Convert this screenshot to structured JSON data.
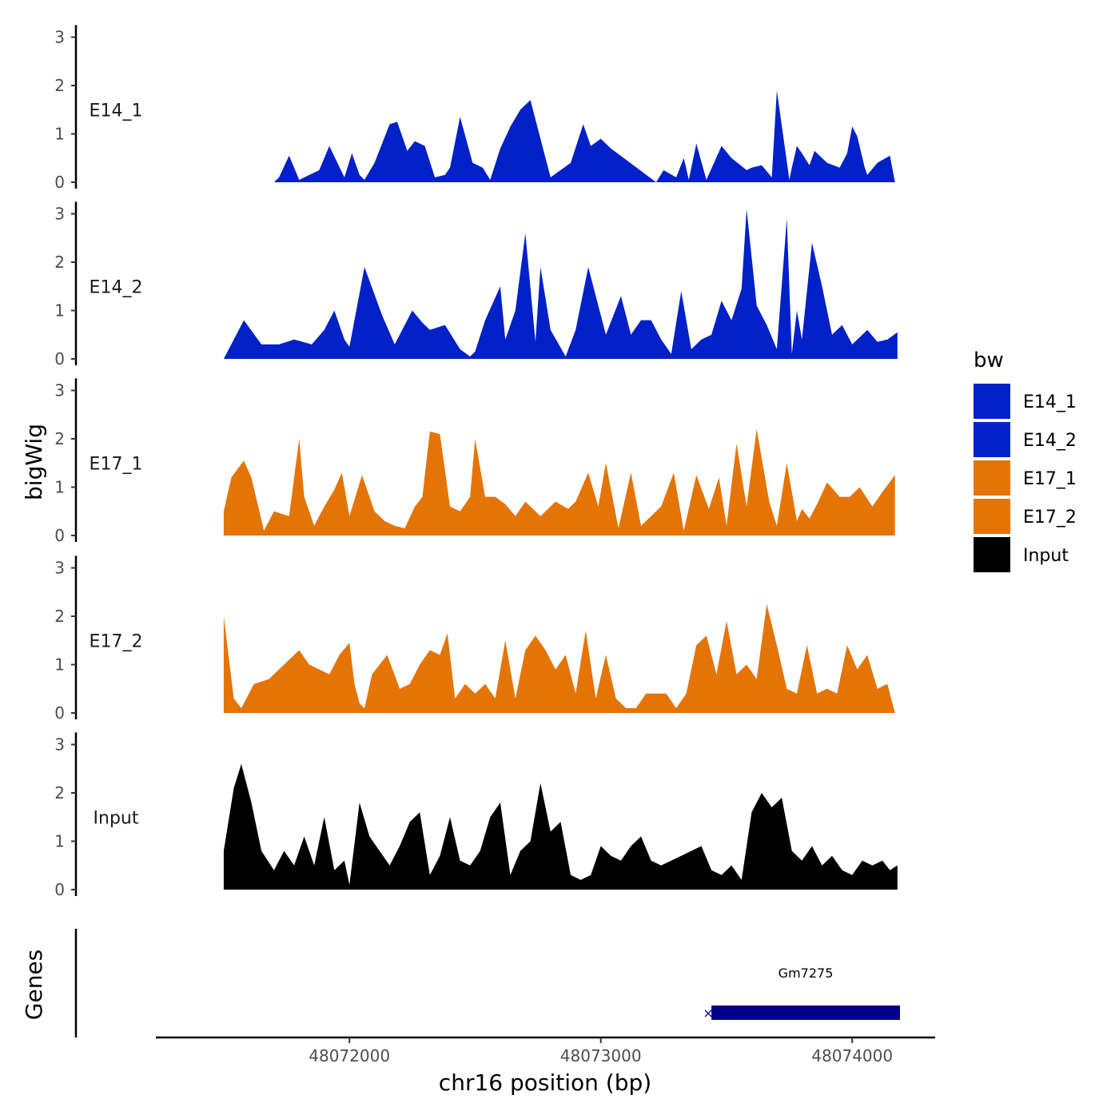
{
  "chart_data": {
    "type": "area",
    "title": "",
    "ylabel": "bigWig",
    "xlabel": "chr16 position (bp)",
    "genes_label": "Genes",
    "xlim": [
      48071230,
      48074330
    ],
    "ylim": [
      0,
      3.2
    ],
    "x_ticks": [
      48072000,
      48073000,
      48074000
    ],
    "x_tick_labels": [
      "48072000",
      "48073000",
      "48074000"
    ],
    "y_ticks": [
      0,
      1,
      2,
      3
    ],
    "y_tick_labels": [
      "0",
      "1",
      "2",
      "3"
    ],
    "legend": {
      "title": "bw",
      "placement": "right",
      "entries": [
        {
          "label": "E14_1",
          "color": "#0020C8"
        },
        {
          "label": "E14_2",
          "color": "#0020C8"
        },
        {
          "label": "E17_1",
          "color": "#E57406"
        },
        {
          "label": "E17_2",
          "color": "#E57406"
        },
        {
          "label": "Input",
          "color": "#000000"
        }
      ]
    },
    "series": [
      {
        "name": "E14_1",
        "color": "#0020C8",
        "x": [
          48071700,
          48071720,
          48071760,
          48071800,
          48071880,
          48071920,
          48071980,
          48072010,
          48072040,
          48072060,
          48072100,
          48072160,
          48072190,
          48072230,
          48072260,
          48072300,
          48072340,
          48072380,
          48072400,
          48072440,
          48072490,
          48072530,
          48072560,
          48072600,
          48072640,
          48072680,
          48072720,
          48072800,
          48072880,
          48072930,
          48072960,
          48073000,
          48073040,
          48073220,
          48073250,
          48073300,
          48073330,
          48073350,
          48073380,
          48073420,
          48073480,
          48073520,
          48073580,
          48073600,
          48073640,
          48073680,
          48073700,
          48073750,
          48073760,
          48073780,
          48073800,
          48073830,
          48073850,
          48073900,
          48073950,
          48073980,
          48074000,
          48074020,
          48074050,
          48074060,
          48074100,
          48074150,
          48074170
        ],
        "values": [
          0,
          0.1,
          0.55,
          0.05,
          0.25,
          0.75,
          0.1,
          0.6,
          0.15,
          0.05,
          0.4,
          1.2,
          1.25,
          0.65,
          0.85,
          0.75,
          0.1,
          0.15,
          0.3,
          1.35,
          0.4,
          0.3,
          0.05,
          0.7,
          1.15,
          1.5,
          1.7,
          0.1,
          0.4,
          1.2,
          0.75,
          0.9,
          0.7,
          0,
          0.25,
          0.1,
          0.5,
          0.05,
          0.8,
          0.05,
          0.75,
          0.5,
          0.25,
          0.3,
          0.35,
          0.1,
          1.9,
          0.05,
          0.3,
          0.75,
          0.6,
          0.35,
          0.65,
          0.4,
          0.3,
          0.6,
          1.15,
          0.95,
          0.3,
          0.15,
          0.4,
          0.55,
          0
        ]
      },
      {
        "name": "E14_2",
        "color": "#0020C8",
        "x": [
          48071500,
          48071580,
          48071650,
          48071720,
          48071780,
          48071850,
          48071900,
          48071940,
          48071980,
          48072000,
          48072060,
          48072130,
          48072180,
          48072250,
          48072290,
          48072320,
          48072380,
          48072440,
          48072480,
          48072500,
          48072540,
          48072600,
          48072620,
          48072660,
          48072700,
          48072740,
          48072760,
          48072800,
          48072860,
          48072900,
          48072950,
          48073020,
          48073080,
          48073120,
          48073160,
          48073200,
          48073240,
          48073280,
          48073320,
          48073360,
          48073400,
          48073440,
          48073480,
          48073520,
          48073560,
          48073580,
          48073620,
          48073660,
          48073700,
          48073740,
          48073760,
          48073780,
          48073800,
          48073840,
          48073880,
          48073920,
          48073960,
          48074000,
          48074060,
          48074100,
          48074140,
          48074180
        ],
        "values": [
          0,
          0.8,
          0.3,
          0.3,
          0.4,
          0.3,
          0.6,
          1.0,
          0.4,
          0.25,
          1.9,
          0.9,
          0.3,
          1.0,
          0.75,
          0.6,
          0.7,
          0.2,
          0.05,
          0.15,
          0.8,
          1.5,
          0.4,
          1.0,
          2.6,
          0.35,
          1.9,
          0.6,
          0.05,
          0.6,
          1.9,
          0.5,
          1.3,
          0.5,
          0.8,
          0.8,
          0.4,
          0.1,
          1.4,
          0.2,
          0.4,
          0.5,
          1.2,
          0.8,
          1.45,
          3.1,
          1.1,
          0.7,
          0.2,
          2.9,
          0.1,
          1.0,
          0.4,
          2.4,
          1.5,
          0.5,
          0.7,
          0.3,
          0.6,
          0.35,
          0.4,
          0.55
        ]
      },
      {
        "name": "E17_1",
        "color": "#E57406",
        "x": [
          48071500,
          48071530,
          48071580,
          48071610,
          48071660,
          48071700,
          48071760,
          48071800,
          48071820,
          48071860,
          48071900,
          48071940,
          48071970,
          48072000,
          48072050,
          48072100,
          48072140,
          48072180,
          48072220,
          48072260,
          48072290,
          48072320,
          48072360,
          48072400,
          48072440,
          48072480,
          48072500,
          48072540,
          48072580,
          48072620,
          48072660,
          48072700,
          48072760,
          48072820,
          48072870,
          48072900,
          48072950,
          48072990,
          48073020,
          48073070,
          48073120,
          48073160,
          48073190,
          48073240,
          48073290,
          48073330,
          48073380,
          48073430,
          48073470,
          48073500,
          48073540,
          48073580,
          48073620,
          48073670,
          48073700,
          48073740,
          48073780,
          48073800,
          48073830,
          48073860,
          48073900,
          48073950,
          48073990,
          48074030,
          48074080,
          48074120,
          48074170
        ],
        "values": [
          0.5,
          1.2,
          1.55,
          1.2,
          0.1,
          0.5,
          0.4,
          2.0,
          0.8,
          0.2,
          0.6,
          0.95,
          1.3,
          0.4,
          1.25,
          0.5,
          0.3,
          0.2,
          0.15,
          0.6,
          0.8,
          2.15,
          2.1,
          0.6,
          0.5,
          0.8,
          2.0,
          0.8,
          0.8,
          0.65,
          0.4,
          0.7,
          0.4,
          0.7,
          0.55,
          0.7,
          1.3,
          0.6,
          1.5,
          0.15,
          1.3,
          0.2,
          0.35,
          0.6,
          1.3,
          0.1,
          1.25,
          0.55,
          1.2,
          0.2,
          1.9,
          0.6,
          2.2,
          0.7,
          0.2,
          1.5,
          0.3,
          0.55,
          0.35,
          0.65,
          1.1,
          0.8,
          0.8,
          1.0,
          0.6,
          0.9,
          1.25
        ]
      },
      {
        "name": "E17_2",
        "color": "#E57406",
        "x": [
          48071500,
          48071540,
          48071570,
          48071620,
          48071680,
          48071720,
          48071760,
          48071800,
          48071840,
          48071880,
          48071920,
          48071960,
          48072000,
          48072020,
          48072040,
          48072060,
          48072090,
          48072120,
          48072150,
          48072200,
          48072240,
          48072280,
          48072320,
          48072360,
          48072390,
          48072420,
          48072460,
          48072500,
          48072540,
          48072580,
          48072620,
          48072660,
          48072700,
          48072740,
          48072780,
          48072820,
          48072860,
          48072900,
          48072940,
          48072980,
          48073020,
          48073060,
          48073100,
          48073140,
          48073180,
          48073220,
          48073260,
          48073300,
          48073340,
          48073380,
          48073420,
          48073460,
          48073500,
          48073540,
          48073580,
          48073620,
          48073660,
          48073700,
          48073740,
          48073780,
          48073820,
          48073860,
          48073900,
          48073940,
          48073980,
          48074020,
          48074060,
          48074100,
          48074140,
          48074170
        ],
        "values": [
          2.0,
          0.3,
          0.1,
          0.6,
          0.7,
          0.9,
          1.1,
          1.3,
          1.0,
          0.9,
          0.8,
          1.2,
          1.45,
          0.6,
          0.2,
          0.1,
          0.8,
          1.0,
          1.2,
          0.5,
          0.6,
          1.0,
          1.3,
          1.2,
          1.65,
          0.3,
          0.6,
          0.4,
          0.6,
          0.3,
          1.5,
          0.3,
          1.3,
          1.6,
          1.3,
          0.9,
          1.2,
          0.4,
          1.7,
          0.3,
          1.2,
          0.3,
          0.1,
          0.1,
          0.4,
          0.4,
          0.4,
          0.1,
          0.4,
          1.4,
          1.6,
          0.8,
          1.9,
          0.8,
          1.0,
          0.7,
          2.25,
          1.4,
          0.5,
          0.4,
          1.4,
          0.4,
          0.5,
          0.4,
          1.4,
          0.9,
          1.2,
          0.5,
          0.6,
          0
        ]
      },
      {
        "name": "Input",
        "color": "#000000",
        "x": [
          48071500,
          48071540,
          48071570,
          48071610,
          48071650,
          48071700,
          48071740,
          48071780,
          48071820,
          48071860,
          48071900,
          48071940,
          48071980,
          48072000,
          48072040,
          48072080,
          48072120,
          48072160,
          48072200,
          48072240,
          48072280,
          48072320,
          48072360,
          48072400,
          48072440,
          48072480,
          48072520,
          48072560,
          48072600,
          48072640,
          48072680,
          48072720,
          48072760,
          48072800,
          48072840,
          48072880,
          48072920,
          48072960,
          48073000,
          48073040,
          48073080,
          48073120,
          48073160,
          48073200,
          48073240,
          48073280,
          48073320,
          48073360,
          48073400,
          48073440,
          48073480,
          48073520,
          48073560,
          48073600,
          48073640,
          48073680,
          48073720,
          48073760,
          48073800,
          48073840,
          48073880,
          48073920,
          48073960,
          48074000,
          48074040,
          48074080,
          48074120,
          48074150,
          48074180
        ],
        "values": [
          0.8,
          2.1,
          2.6,
          1.8,
          0.8,
          0.4,
          0.8,
          0.5,
          1.1,
          0.5,
          1.5,
          0.4,
          0.6,
          0.1,
          1.8,
          1.1,
          0.8,
          0.5,
          0.9,
          1.4,
          1.6,
          0.3,
          0.7,
          1.5,
          0.6,
          0.5,
          0.8,
          1.5,
          1.8,
          0.3,
          0.8,
          1.0,
          2.2,
          1.2,
          1.4,
          0.3,
          0.2,
          0.3,
          0.9,
          0.7,
          0.6,
          0.9,
          1.1,
          0.6,
          0.5,
          0.6,
          0.7,
          0.8,
          0.9,
          0.4,
          0.3,
          0.5,
          0.2,
          1.6,
          2.0,
          1.7,
          1.9,
          0.8,
          0.6,
          0.9,
          0.5,
          0.7,
          0.4,
          0.3,
          0.6,
          0.5,
          0.6,
          0.4,
          0.5
        ]
      }
    ],
    "genes": [
      {
        "name": "Gm7275",
        "start": 48073440,
        "end": 48074190,
        "strand": "-"
      }
    ]
  }
}
